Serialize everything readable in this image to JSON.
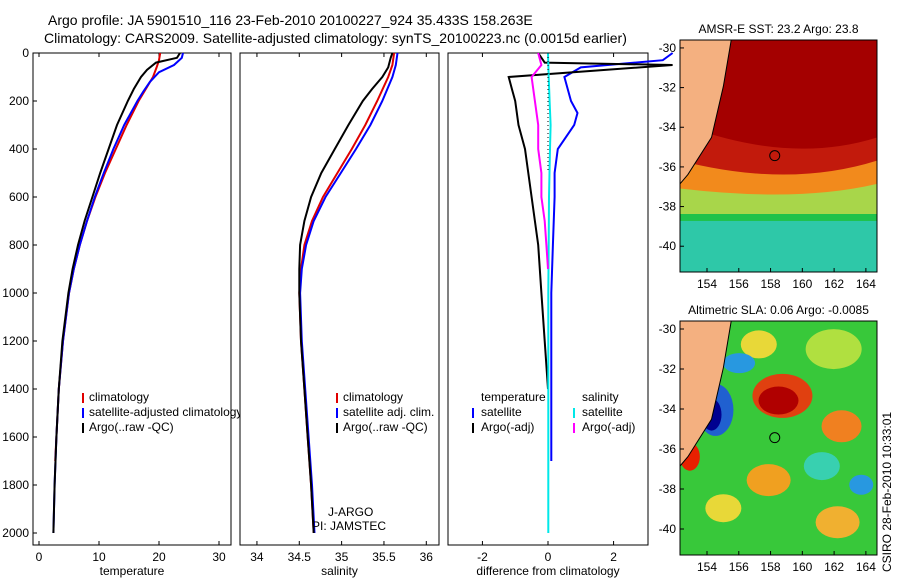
{
  "header": {
    "line1": "Argo profile: JA 5901510_116 23-Feb-2010 20100227_924 35.433S 158.263E",
    "line2": "Climatology: CARS2009. Satellite-adjusted climatology: synTS_20100223.nc (0.0015d earlier)"
  },
  "credit": "CSIRO 28-Feb-2010 10:33:01",
  "colors": {
    "climatology": "#e00000",
    "satellite": "#0000ff",
    "argo": "#000000",
    "satellite_salinity": "#00e8e8",
    "argo_adj_salinity": "#ff00ff",
    "land": "#f4b080"
  },
  "chart_data": [
    {
      "type": "line",
      "name": "temperature-profile",
      "xlabel": "temperature",
      "ylabel": "",
      "xlim": [
        -1,
        32
      ],
      "ylim": [
        2050,
        0
      ],
      "x_ticks": [
        0,
        10,
        20,
        30
      ],
      "y_ticks": [
        0,
        200,
        400,
        600,
        800,
        1000,
        1200,
        1400,
        1600,
        1800,
        2000
      ],
      "legend": [
        "climatology",
        "satellite-adjusted climatology",
        "Argo(..raw -QC)"
      ],
      "series": [
        {
          "name": "climatology",
          "color": "#e00000",
          "depth": [
            0,
            30,
            60,
            100,
            150,
            200,
            300,
            400,
            500,
            600,
            700,
            800,
            900,
            1000,
            1200,
            1400,
            1600,
            1700
          ],
          "values": [
            20.2,
            20.0,
            19.6,
            19.0,
            17.8,
            16.6,
            14.6,
            12.8,
            11.0,
            9.4,
            8.0,
            6.8,
            5.8,
            5.0,
            4.0,
            3.3,
            2.9,
            2.7
          ]
        },
        {
          "name": "satellite-adjusted climatology",
          "color": "#0000ff",
          "depth": [
            0,
            20,
            50,
            80,
            120,
            160,
            200,
            300,
            400,
            500,
            600,
            700,
            800,
            900,
            1000,
            1200,
            1400,
            1600,
            1800,
            2000
          ],
          "values": [
            24.0,
            23.8,
            22.5,
            20.0,
            18.5,
            17.4,
            16.4,
            14.2,
            12.4,
            10.8,
            9.3,
            8.0,
            6.8,
            5.8,
            5.0,
            4.0,
            3.3,
            2.9,
            2.6,
            2.4
          ]
        },
        {
          "name": "Argo(..raw -QC)",
          "color": "#000000",
          "depth": [
            0,
            20,
            40,
            70,
            100,
            150,
            200,
            300,
            400,
            500,
            600,
            700,
            800,
            900,
            1000,
            1200,
            1400,
            1600,
            1800,
            2000
          ],
          "values": [
            23.5,
            23.0,
            19.5,
            18.0,
            17.0,
            15.8,
            14.8,
            13.0,
            11.6,
            10.2,
            8.9,
            7.6,
            6.5,
            5.6,
            4.9,
            3.9,
            3.3,
            2.9,
            2.6,
            2.4
          ]
        }
      ]
    },
    {
      "type": "line",
      "name": "salinity-profile",
      "xlabel": "salinity",
      "ylabel": "",
      "xlim": [
        33.8,
        36.15
      ],
      "ylim": [
        2050,
        0
      ],
      "x_ticks": [
        34,
        34.5,
        35,
        35.5,
        36
      ],
      "y_ticks": [],
      "legend": [
        "climatology",
        "satellite adj. clim.",
        "Argo(..raw -QC)"
      ],
      "annotations": [
        "J-ARGO",
        "PI: JAMSTEC"
      ],
      "series": [
        {
          "name": "climatology",
          "color": "#e00000",
          "depth": [
            0,
            50,
            100,
            200,
            300,
            400,
            500,
            600,
            700,
            800,
            900,
            1000,
            1200,
            1400,
            1600,
            1800,
            2000
          ],
          "values": [
            35.62,
            35.6,
            35.55,
            35.42,
            35.28,
            35.12,
            34.95,
            34.78,
            34.65,
            34.56,
            34.52,
            34.5,
            34.52,
            34.56,
            34.6,
            34.64,
            34.67
          ]
        },
        {
          "name": "satellite adj. clim.",
          "color": "#0000ff",
          "depth": [
            0,
            50,
            100,
            200,
            300,
            400,
            500,
            600,
            700,
            800,
            900,
            1000,
            1200,
            1400,
            1600,
            1800,
            2000
          ],
          "values": [
            35.66,
            35.64,
            35.6,
            35.48,
            35.34,
            35.17,
            34.99,
            34.81,
            34.67,
            34.58,
            34.53,
            34.51,
            34.53,
            34.57,
            34.61,
            34.65,
            34.68
          ]
        },
        {
          "name": "Argo(..raw -QC)",
          "color": "#000000",
          "depth": [
            0,
            20,
            60,
            100,
            150,
            200,
            300,
            400,
            500,
            600,
            700,
            800,
            900,
            1000,
            1200,
            1400,
            1600,
            1800,
            2000
          ],
          "values": [
            35.6,
            35.58,
            35.55,
            35.48,
            35.36,
            35.25,
            35.08,
            34.92,
            34.76,
            34.64,
            34.56,
            34.51,
            34.5,
            34.5,
            34.52,
            34.56,
            34.6,
            34.64,
            34.67
          ]
        }
      ]
    },
    {
      "type": "line",
      "name": "difference-from-climatology",
      "xlabel": "difference from climatology",
      "ylabel": "",
      "xlim": [
        -3.05,
        3.05
      ],
      "ylim": [
        2050,
        0
      ],
      "x_ticks": [
        -2,
        0,
        2
      ],
      "y_ticks": [],
      "legend_titles": [
        "temperature",
        "salinity"
      ],
      "legend": [
        "satellite",
        "Argo(-adj)",
        "satellite",
        "Argo(-adj)"
      ],
      "series": [
        {
          "name": "temperature satellite",
          "color": "#0000ff",
          "depth": [
            0,
            30,
            60,
            100,
            150,
            200,
            250,
            300,
            400,
            500,
            600,
            800,
            1000,
            1200,
            1400,
            1600,
            1700
          ],
          "values": [
            3.8,
            3.5,
            1.0,
            0.5,
            0.6,
            0.7,
            0.9,
            0.8,
            0.3,
            0.2,
            0.2,
            0.15,
            0.1,
            0.1,
            0.1,
            0.1,
            0.1
          ]
        },
        {
          "name": "temperature Argo(-adj)",
          "color": "#000000",
          "depth": [
            0,
            40,
            50,
            100,
            150,
            200,
            300,
            400,
            500,
            600,
            700,
            800,
            1000,
            1200,
            1400
          ],
          "values": [
            -0.3,
            -0.1,
            3.8,
            -1.2,
            -1.1,
            -1.0,
            -0.9,
            -0.7,
            -0.6,
            -0.5,
            -0.4,
            -0.3,
            -0.2,
            -0.1,
            0.0
          ]
        },
        {
          "name": "salinity satellite",
          "color": "#00e8e8",
          "depth": [
            0,
            100,
            200,
            300,
            400,
            600,
            800,
            1000,
            1400,
            1800,
            2000
          ],
          "values": [
            0.0,
            0.02,
            0.05,
            0.08,
            0.06,
            0.03,
            0.02,
            0.01,
            0.01,
            0.01,
            0.01
          ]
        },
        {
          "name": "salinity Argo(-adj)",
          "color": "#ff00ff",
          "depth": [
            0,
            50,
            100,
            200,
            300,
            400,
            500,
            600,
            700,
            800,
            900
          ],
          "values": [
            -0.3,
            -0.2,
            -0.5,
            -0.4,
            -0.3,
            -0.3,
            -0.2,
            -0.2,
            -0.1,
            -0.05,
            0.0
          ]
        }
      ]
    },
    {
      "type": "heatmap",
      "name": "amsr-e-sst-map",
      "title": "AMSR-E SST: 23.2  Argo: 23.8",
      "x_ticks": [
        154,
        156,
        158,
        160,
        162,
        164
      ],
      "y_ticks": [
        -30,
        -32,
        -34,
        -36,
        -38,
        -40
      ],
      "xlim": [
        152.3,
        164.7
      ],
      "ylim": [
        -41.3,
        -29.6
      ],
      "marker": {
        "lon": 158.263,
        "lat": -35.433
      }
    },
    {
      "type": "heatmap",
      "name": "altimetric-sla-map",
      "title": "Altimetric SLA: 0.06  Argo: -0.0085",
      "x_ticks": [
        154,
        156,
        158,
        160,
        162,
        164
      ],
      "y_ticks": [
        -30,
        -32,
        -34,
        -36,
        -38,
        -40
      ],
      "xlim": [
        152.3,
        164.7
      ],
      "ylim": [
        -41.3,
        -29.6
      ],
      "marker": {
        "lon": 158.263,
        "lat": -35.433
      }
    }
  ]
}
